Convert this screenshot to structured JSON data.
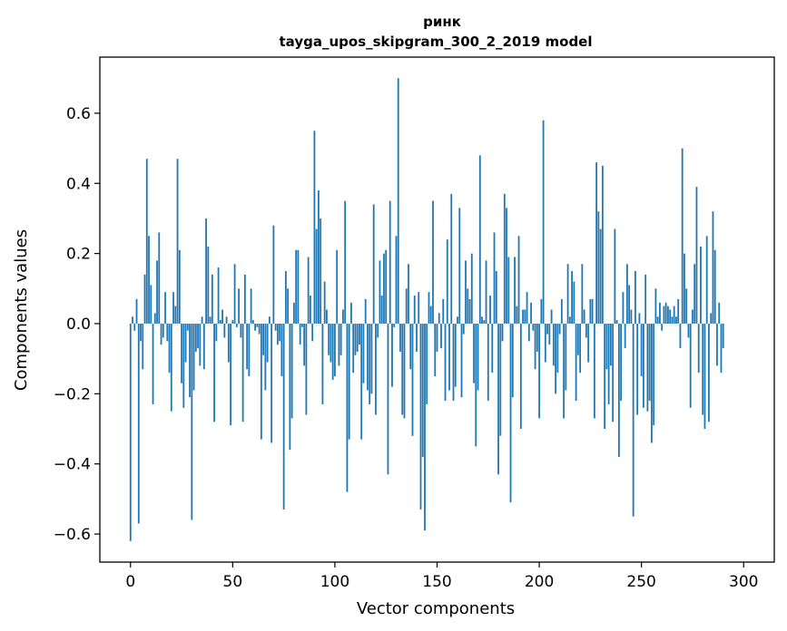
{
  "chart_data": {
    "type": "bar",
    "title": "ринк",
    "subtitle": "tayga_upos_skipgram_300_2_2019 model",
    "xlabel": "Vector components",
    "ylabel": "Components values",
    "xlim": [
      -15,
      315
    ],
    "ylim": [
      -0.68,
      0.76
    ],
    "xticks": [
      0,
      50,
      100,
      150,
      200,
      250,
      300
    ],
    "xtick_labels": [
      "0",
      "50",
      "100",
      "150",
      "200",
      "250",
      "300"
    ],
    "yticks": [
      -0.6,
      -0.4,
      -0.2,
      0.0,
      0.2,
      0.4,
      0.6
    ],
    "ytick_labels": [
      "−0.6",
      "−0.4",
      "−0.2",
      "0.0",
      "0.2",
      "0.4",
      "0.6"
    ],
    "grid": false,
    "bar_color": "#1f77b4",
    "x_start": 0,
    "values": [
      -0.62,
      0.02,
      -0.02,
      0.07,
      -0.57,
      -0.05,
      -0.13,
      0.14,
      0.47,
      0.25,
      0.11,
      -0.23,
      0.03,
      0.18,
      0.26,
      -0.06,
      -0.04,
      0.09,
      -0.05,
      -0.14,
      -0.25,
      0.09,
      0.05,
      0.47,
      0.21,
      -0.17,
      -0.24,
      -0.11,
      -0.02,
      -0.21,
      -0.56,
      -0.19,
      -0.08,
      -0.07,
      -0.12,
      0.02,
      -0.13,
      0.3,
      0.22,
      0.02,
      0.14,
      -0.28,
      -0.05,
      0.16,
      0.01,
      0.04,
      -0.04,
      0.02,
      -0.11,
      -0.29,
      0.01,
      0.17,
      -0.01,
      0.1,
      -0.04,
      -0.28,
      0.14,
      -0.13,
      -0.15,
      0.1,
      0.01,
      -0.02,
      -0.01,
      -0.03,
      -0.33,
      -0.09,
      -0.19,
      -0.11,
      0.02,
      -0.34,
      0.28,
      -0.02,
      -0.06,
      -0.05,
      -0.15,
      -0.53,
      0.15,
      0.1,
      -0.36,
      -0.27,
      0.06,
      0.21,
      0.21,
      -0.06,
      -0.01,
      -0.12,
      -0.26,
      0.19,
      0.08,
      -0.05,
      0.55,
      0.27,
      0.38,
      0.3,
      -0.23,
      0.12,
      0.04,
      -0.09,
      -0.11,
      -0.16,
      -0.15,
      0.21,
      -0.12,
      -0.09,
      0.04,
      0.35,
      -0.48,
      -0.33,
      0.06,
      -0.14,
      -0.09,
      -0.08,
      -0.06,
      -0.33,
      -0.17,
      0.07,
      -0.19,
      -0.23,
      -0.2,
      0.34,
      -0.26,
      -0.04,
      0.18,
      0.08,
      0.2,
      0.21,
      -0.43,
      0.35,
      -0.18,
      -0.01,
      0.25,
      0.7,
      -0.08,
      -0.26,
      -0.27,
      0.1,
      0.17,
      -0.13,
      -0.32,
      0.08,
      -0.08,
      0.09,
      -0.53,
      -0.38,
      -0.59,
      -0.23,
      0.09,
      0.05,
      0.35,
      -0.15,
      -0.08,
      0.03,
      -0.07,
      0.07,
      -0.22,
      0.24,
      -0.19,
      0.37,
      -0.22,
      -0.18,
      0.02,
      0.33,
      -0.21,
      -0.03,
      0.18,
      0.1,
      0.07,
      0.2,
      -0.17,
      -0.35,
      -0.19,
      0.48,
      0.02,
      0.01,
      0.18,
      -0.22,
      0.08,
      -0.14,
      0.26,
      0.15,
      -0.43,
      -0.32,
      -0.05,
      0.37,
      0.33,
      0.19,
      -0.51,
      -0.21,
      0.19,
      0.05,
      0.25,
      -0.3,
      0.04,
      0.04,
      0.09,
      -0.05,
      0.06,
      -0.02,
      -0.13,
      -0.08,
      -0.27,
      0.07,
      0.58,
      -0.11,
      -0.03,
      -0.06,
      0.04,
      -0.12,
      -0.2,
      -0.14,
      -0.03,
      0.07,
      -0.27,
      -0.19,
      0.17,
      0.02,
      0.15,
      0.12,
      -0.22,
      -0.09,
      -0.14,
      0.17,
      0.04,
      -0.04,
      -0.11,
      0.07,
      0.07,
      -0.27,
      0.46,
      0.32,
      0.27,
      0.45,
      -0.3,
      -0.13,
      -0.23,
      -0.12,
      -0.28,
      0.27,
      0.01,
      -0.38,
      -0.22,
      0.09,
      -0.07,
      0.17,
      0.11,
      0.04,
      -0.55,
      0.15,
      -0.26,
      0.03,
      -0.15,
      -0.24,
      0.14,
      -0.25,
      -0.22,
      -0.34,
      -0.29,
      0.1,
      0.02,
      0.06,
      -0.02,
      0.05,
      0.06,
      0.05,
      0.04,
      0.02,
      0.05,
      0.02,
      0.07,
      -0.07,
      0.5,
      0.2,
      0.1,
      -0.04,
      -0.24,
      0.04,
      0.17,
      0.39,
      -0.14,
      0.22,
      -0.26,
      -0.3,
      0.25,
      -0.28,
      0.03,
      0.32,
      0.21,
      -0.12,
      0.06,
      -0.14,
      -0.07
    ]
  }
}
